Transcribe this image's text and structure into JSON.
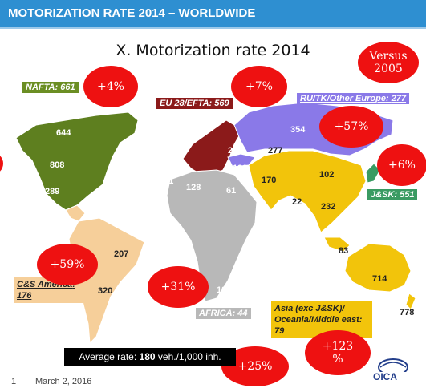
{
  "header": {
    "title": "MOTORIZATION RATE 2014 – WORLDWIDE"
  },
  "map_title": "X. Motorization rate 2014",
  "versus": "Versus 2005",
  "regions": {
    "nafta": {
      "label": "NAFTA",
      "value": "661",
      "change": "+4%",
      "color": "#6b8e23"
    },
    "eu": {
      "label": "EU 28/EFTA",
      "value": "569",
      "change": "+7%",
      "color": "#8b1a1a"
    },
    "ru": {
      "label": "RU/TK/Other Europe",
      "value": "277",
      "change": "+57%",
      "color": "#8a79e8"
    },
    "jsk": {
      "label": "J&SK",
      "value": "551",
      "change": "+6%",
      "color": "#3a9b62"
    },
    "cs": {
      "label": "C&S America",
      "value": "176",
      "change": "+59%",
      "color": "#f6cf9a"
    },
    "africa": {
      "label": "AFRICA",
      "value": "44",
      "change": "+31%",
      "color": "#b8b8b8"
    },
    "asia": {
      "label": "Asia (exc J&SK)/ Oceania/Middle east",
      "value": "79",
      "change": "+123 %",
      "color": "#f2c40b"
    },
    "world": {
      "change": "+25%"
    }
  },
  "numbers": {
    "n644": "644",
    "n808": "808",
    "n289": "289",
    "n207": "207",
    "n320": "320",
    "n101": "101",
    "n128": "128",
    "n61": "61",
    "n180": "180",
    "n204": "204",
    "n189": "189",
    "n354": "354",
    "n277": "277",
    "n170": "170",
    "n102": "102",
    "n22": "22",
    "n232": "232",
    "n83": "83",
    "n714": "714",
    "n778": "778"
  },
  "average": {
    "prefix": "Average rate: ",
    "value": "180",
    "suffix": " veh./1,000 inh."
  },
  "footer": {
    "page": "1",
    "date": "March 2, 2016",
    "logo": "OICA"
  }
}
